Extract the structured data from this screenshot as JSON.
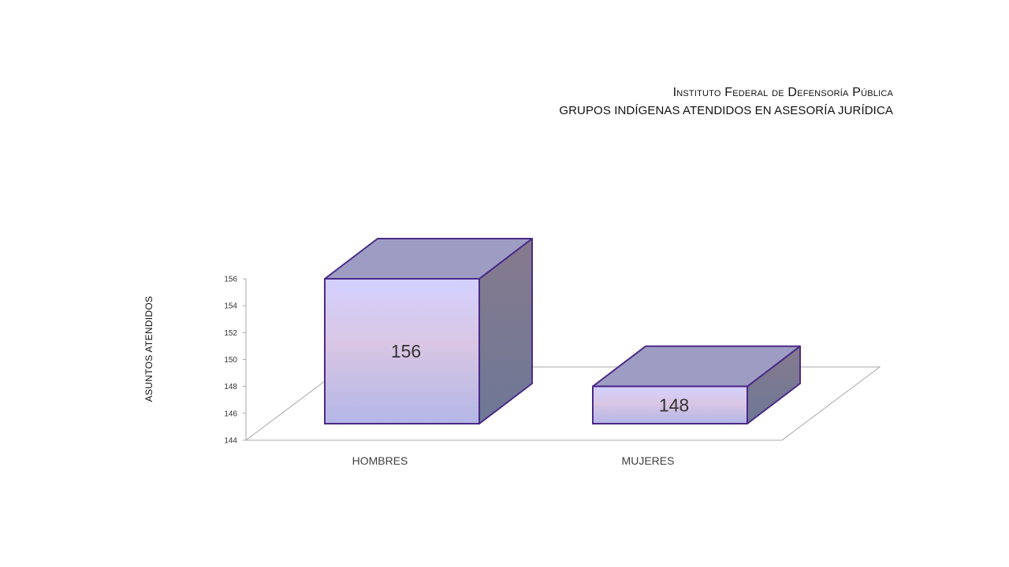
{
  "chart_data": {
    "type": "bar",
    "title": "Instituto Federal de Defensoría Pública",
    "subtitle": "GRUPOS INDÍGENAS ATENDIDOS EN ASESORÍA JURÍDICA",
    "xlabel": "",
    "ylabel": "ASUNTOS ATENDIDOS",
    "categories": [
      "HOMBRES",
      "MUJERES"
    ],
    "values": [
      156,
      148
    ],
    "data_labels": [
      "156",
      "148"
    ],
    "ylim": [
      144,
      156
    ],
    "yticks": [
      "144",
      "146",
      "148",
      "150",
      "152",
      "154",
      "156"
    ],
    "grid": false,
    "legend": "none",
    "style": "3d-box",
    "colors": {
      "bar_front_top": "#d3d1ff",
      "bar_front_mid": "#d9c6e4",
      "bar_front_bottom": "#b3b6e6",
      "bar_top": "#9d9dc4",
      "bar_side_top": "#867a8e",
      "bar_side_bottom": "#6e7896",
      "bar_outline": "#4b2a87",
      "axis": "#a8a8a8",
      "text": "#333333"
    }
  }
}
